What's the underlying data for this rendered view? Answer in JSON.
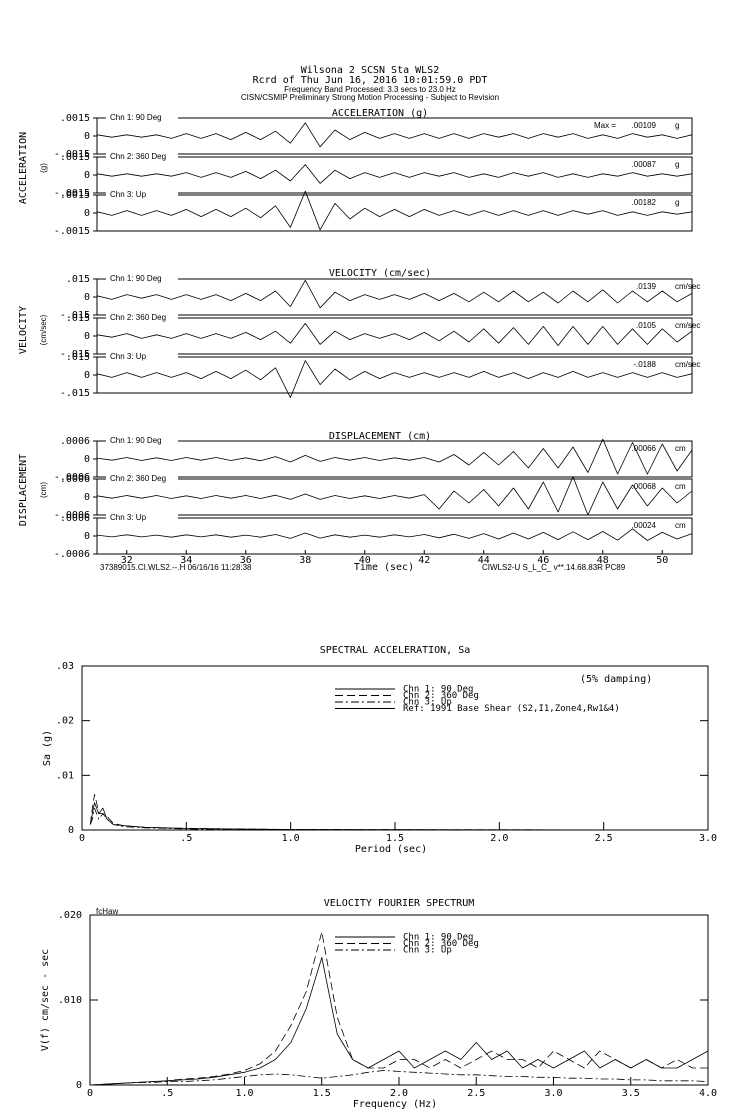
{
  "header": {
    "line1": "Wilsona 2    SCSN Sta WLS2",
    "line2": "Rcrd of Thu Jun 16, 2016 10:01:59.0 PDT",
    "line3": "Frequency Band Processed: 3.3 secs to 23.0 Hz",
    "line4": "CISN/CSMIP Preliminary Strong Motion Processing - Subject to Revision"
  },
  "footer": {
    "left": "37389015.CI.WLS2.--.H 06/16/16 11:28:38",
    "right": "CIWLS2-U  S_L_C_  v**.14.68.83R PC89"
  },
  "chart_data": [
    {
      "type": "waveform",
      "title": "ACCELERATION (g)",
      "ylabel": "ACCELERATION",
      "yunit": "(g)",
      "max_prefix": "Max =",
      "max_unit": "g",
      "xlim": [
        31,
        51
      ],
      "ylim": [
        -0.0015,
        0.0015
      ],
      "yticks": [
        {
          "value": 0.0015,
          "label": ".0015"
        },
        0,
        {
          "value": -0.0015,
          "label": "-.0015"
        }
      ],
      "x": [
        31,
        31.5,
        32,
        32.5,
        33,
        33.5,
        34,
        34.5,
        35,
        35.5,
        36,
        36.5,
        37,
        37.5,
        38,
        38.5,
        39,
        39.5,
        40,
        40.5,
        41,
        41.5,
        42,
        42.5,
        43,
        43.5,
        44,
        44.5,
        45,
        45.5,
        46,
        46.5,
        47,
        47.5,
        48,
        48.5,
        49,
        49.5,
        50,
        50.5,
        51
      ],
      "series": [
        {
          "name": "Chn 1: 90 Deg",
          "max_value": 0.00109,
          "max_label": ".00109",
          "values": [
            0.0001,
            -0.0001,
            0.0001,
            -0.0001,
            0.0001,
            -0.0002,
            0.0002,
            -0.0002,
            0.0002,
            -0.0003,
            0.0003,
            -0.0003,
            0.0004,
            -0.0006,
            0.00109,
            -0.0009,
            0.0005,
            -0.0003,
            0.0003,
            -0.0002,
            0.0002,
            -0.0002,
            0.0002,
            -0.0002,
            0.0002,
            -0.0002,
            0.0002,
            -0.0001,
            0.0002,
            -0.0002,
            0.0002,
            -0.0001,
            0.0002,
            -0.0002,
            0.0001,
            -0.0002,
            0.0002,
            -0.0001,
            0.0001,
            -0.0002,
            0.0001
          ]
        },
        {
          "name": "Chn 2: 360 Deg",
          "max_value": 0.00087,
          "max_label": ".00087",
          "values": [
            0.0001,
            -0.0001,
            0.0001,
            -0.0001,
            0.0001,
            -0.0001,
            0.0002,
            -0.0002,
            0.0002,
            -0.0002,
            0.0003,
            -0.0003,
            0.0004,
            -0.0005,
            0.00087,
            -0.0007,
            0.0004,
            -0.0003,
            0.0002,
            -0.0002,
            0.0002,
            -0.0002,
            0.0002,
            -0.0001,
            0.0002,
            -0.0002,
            0.0001,
            -0.0002,
            0.0002,
            -0.0001,
            0.0002,
            -0.0002,
            0.0001,
            -0.0002,
            0.0001,
            -0.0001,
            0.0002,
            -0.0001,
            0.0001,
            -0.0001,
            0.0001
          ]
        },
        {
          "name": "Chn 3: Up",
          "max_value": 0.00182,
          "max_label": ".00182",
          "values": [
            0.0001,
            -0.0002,
            0.0002,
            -0.0002,
            0.0002,
            -0.0002,
            0.0003,
            -0.0003,
            0.0003,
            -0.0003,
            0.0004,
            -0.0004,
            0.0006,
            -0.0012,
            0.00182,
            -0.0014,
            0.0008,
            -0.0005,
            0.0004,
            -0.0003,
            0.0003,
            -0.0003,
            0.0003,
            -0.0002,
            0.0002,
            -0.0002,
            0.0002,
            -0.0002,
            0.0002,
            -0.0002,
            0.0002,
            -0.0002,
            0.0002,
            -0.0001,
            0.0002,
            -0.0002,
            0.0001,
            -0.0002,
            0.0001,
            -0.0001,
            0.0001
          ]
        }
      ]
    },
    {
      "type": "waveform",
      "title": "VELOCITY (cm/sec)",
      "ylabel": "VELOCITY",
      "yunit": "(cm/sec)",
      "max_unit": "cm/sec",
      "xlim": [
        31,
        51
      ],
      "ylim": [
        -0.015,
        0.015
      ],
      "yticks": [
        {
          "value": 0.015,
          "label": ".015"
        },
        0,
        {
          "value": -0.015,
          "label": "-.015"
        }
      ],
      "x": [
        31,
        31.5,
        32,
        32.5,
        33,
        33.5,
        34,
        34.5,
        35,
        35.5,
        36,
        36.5,
        37,
        37.5,
        38,
        38.5,
        39,
        39.5,
        40,
        40.5,
        41,
        41.5,
        42,
        42.5,
        43,
        43.5,
        44,
        44.5,
        45,
        45.5,
        46,
        46.5,
        47,
        47.5,
        48,
        48.5,
        49,
        49.5,
        50,
        50.5,
        51
      ],
      "series": [
        {
          "name": "Chn 1: 90 Deg",
          "max_value": 0.0139,
          "max_label": ".0139",
          "values": [
            0.001,
            -0.002,
            0.002,
            -0.001,
            0.002,
            -0.002,
            0.002,
            -0.002,
            0.002,
            -0.003,
            0.003,
            -0.003,
            0.005,
            -0.008,
            0.0139,
            -0.009,
            0.004,
            -0.003,
            0.002,
            -0.002,
            0.002,
            -0.002,
            0.003,
            -0.003,
            0.003,
            -0.004,
            0.004,
            -0.004,
            0.005,
            -0.004,
            0.004,
            -0.005,
            0.005,
            -0.004,
            0.006,
            -0.005,
            0.005,
            -0.004,
            0.005,
            -0.004,
            0.003
          ]
        },
        {
          "name": "Chn 2: 360 Deg",
          "max_value": 0.0105,
          "max_label": ".0105",
          "values": [
            0.001,
            -0.001,
            0.002,
            -0.002,
            0.001,
            -0.002,
            0.002,
            -0.002,
            0.002,
            -0.002,
            0.003,
            -0.003,
            0.004,
            -0.006,
            0.0105,
            -0.007,
            0.004,
            -0.003,
            0.002,
            -0.002,
            0.002,
            -0.003,
            0.003,
            -0.004,
            0.004,
            -0.005,
            0.006,
            -0.006,
            0.007,
            -0.007,
            0.008,
            -0.008,
            0.008,
            -0.007,
            0.008,
            -0.007,
            0.006,
            -0.007,
            0.006,
            -0.005,
            0.004
          ]
        },
        {
          "name": "Chn 3: Up",
          "max_value": -0.0188,
          "max_label": "-.0188",
          "values": [
            0.001,
            -0.002,
            0.002,
            -0.002,
            0.002,
            -0.002,
            0.002,
            -0.003,
            0.003,
            -0.003,
            0.004,
            -0.004,
            0.006,
            -0.0188,
            0.012,
            -0.008,
            0.005,
            -0.004,
            0.003,
            -0.003,
            0.002,
            -0.002,
            0.002,
            -0.002,
            0.002,
            -0.002,
            0.003,
            -0.002,
            0.002,
            -0.003,
            0.002,
            -0.002,
            0.003,
            -0.002,
            0.002,
            -0.002,
            0.002,
            -0.002,
            0.002,
            -0.002,
            0.001
          ]
        }
      ]
    },
    {
      "type": "waveform",
      "title": "DISPLACEMENT (cm)",
      "ylabel": "DISPLACEMENT",
      "yunit": "(cm)",
      "max_unit": "cm",
      "xlabel": "Time (sec)",
      "xlim": [
        31,
        51
      ],
      "ylim": [
        -0.0006,
        0.0006
      ],
      "yticks": [
        {
          "value": 0.0006,
          "label": ".0006"
        },
        0,
        {
          "value": -0.0006,
          "label": "-.0006"
        }
      ],
      "xticks": [
        32,
        34,
        36,
        38,
        40,
        42,
        44,
        46,
        48,
        50
      ],
      "x": [
        31,
        31.5,
        32,
        32.5,
        33,
        33.5,
        34,
        34.5,
        35,
        35.5,
        36,
        36.5,
        37,
        37.5,
        38,
        38.5,
        39,
        39.5,
        40,
        40.5,
        41,
        41.5,
        42,
        42.5,
        43,
        43.5,
        44,
        44.5,
        45,
        45.5,
        46,
        46.5,
        47,
        47.5,
        48,
        48.5,
        49,
        49.5,
        50,
        50.5,
        51
      ],
      "series": [
        {
          "name": "Chn 1: 90 Deg",
          "max_value": 0.00066,
          "max_label": ".00066",
          "values": [
            3e-05,
            -4e-05,
            5e-05,
            -5e-05,
            4e-05,
            -5e-05,
            5e-05,
            -4e-05,
            5e-05,
            -5e-05,
            4e-05,
            -6e-05,
            8e-05,
            -0.0001,
            0.00012,
            -8e-05,
            5e-05,
            -4e-05,
            5e-05,
            -5e-05,
            4e-05,
            -4e-05,
            5e-05,
            -0.0001,
            0.00015,
            -0.0002,
            0.00022,
            -0.0002,
            0.00025,
            -0.0003,
            0.00035,
            -0.0003,
            0.0004,
            -0.00045,
            0.00066,
            -0.0005,
            0.00055,
            -0.0005,
            0.0005,
            -0.0004,
            0.0003
          ]
        },
        {
          "name": "Chn 2: 360 Deg",
          "max_value": 0.00068,
          "max_label": ".00068",
          "values": [
            4e-05,
            -4e-05,
            5e-05,
            -4e-05,
            5e-05,
            -5e-05,
            4e-05,
            -5e-05,
            5e-05,
            -4e-05,
            5e-05,
            -5e-05,
            6e-05,
            -8e-05,
            0.0001,
            -8e-05,
            5e-05,
            -5e-05,
            4e-05,
            -5e-05,
            5e-05,
            -4e-05,
            8e-05,
            -0.0004,
            0.0002,
            -0.0002,
            0.00025,
            -0.0003,
            0.0003,
            -0.0004,
            0.0005,
            -0.0005,
            0.00068,
            -0.0006,
            0.0005,
            -0.0004,
            0.0004,
            -0.0003,
            0.0003,
            -0.0002,
            0.0002
          ]
        },
        {
          "name": "Chn 3: Up",
          "max_value": 0.00024,
          "max_label": ".00024",
          "values": [
            3e-05,
            -3e-05,
            4e-05,
            -3e-05,
            3e-05,
            -4e-05,
            4e-05,
            -3e-05,
            4e-05,
            -4e-05,
            3e-05,
            -4e-05,
            5e-05,
            -8e-05,
            0.0001,
            -7e-05,
            4e-05,
            -4e-05,
            3e-05,
            -4e-05,
            4e-05,
            -3e-05,
            5e-05,
            -6e-05,
            6e-05,
            -8e-05,
            8e-05,
            -0.0001,
            0.0001,
            -0.0001,
            0.00012,
            -0.00012,
            0.00014,
            -0.00012,
            0.00015,
            -0.00014,
            0.00024,
            -0.00015,
            0.00012,
            -0.0001,
            8e-05
          ]
        }
      ]
    },
    {
      "type": "line",
      "title": "SPECTRAL ACCELERATION, Sa",
      "xlabel": "Period (sec)",
      "ylabel": "Sa (g)",
      "annotation": "(5% damping)",
      "xlim": [
        0,
        3
      ],
      "ylim": [
        0,
        0.03
      ],
      "xticks": [
        0,
        {
          "value": 0.5,
          "label": ".5"
        },
        {
          "value": 1,
          "label": "1.0"
        },
        {
          "value": 1.5,
          "label": "1.5"
        },
        {
          "value": 2,
          "label": "2.0"
        },
        {
          "value": 2.5,
          "label": "2.5"
        },
        {
          "value": 3,
          "label": "3.0"
        }
      ],
      "yticks": [
        0,
        {
          "value": 0.01,
          "label": ".01"
        },
        {
          "value": 0.02,
          "label": ".02"
        },
        {
          "value": 0.03,
          "label": ".03"
        }
      ],
      "x": [
        0.04,
        0.05,
        0.06,
        0.07,
        0.08,
        0.1,
        0.12,
        0.15,
        0.2,
        0.3,
        0.5,
        0.7,
        1.0,
        1.5,
        2.0,
        2.5,
        3.0
      ],
      "series": [
        {
          "name": "Chn 1: 90 Deg",
          "color": "#000000",
          "line_style": "solid",
          "values": [
            0.001,
            0.003,
            0.005,
            0.004,
            0.003,
            0.004,
            0.002,
            0.001,
            0.0008,
            0.0005,
            0.0003,
            0.0002,
            0.0001,
            5e-05,
            3e-05,
            2e-05,
            2e-05
          ]
        },
        {
          "name": "Chn 2: 360 Deg",
          "color": "#000000",
          "line_style": "dashed",
          "values": [
            0.001,
            0.004,
            0.0065,
            0.005,
            0.003,
            0.003,
            0.0025,
            0.0012,
            0.0008,
            0.0005,
            0.0003,
            0.0002,
            0.0001,
            5e-05,
            3e-05,
            2e-05,
            2e-05
          ]
        },
        {
          "name": "Chn 3: Up",
          "color": "#000000",
          "line_style": "dashdot",
          "values": [
            0.001,
            0.002,
            0.004,
            0.003,
            0.002,
            0.003,
            0.002,
            0.001,
            0.0006,
            0.0004,
            0.0002,
            0.0001,
            7e-05,
            3e-05,
            2e-05,
            1e-05,
            1e-05
          ]
        },
        {
          "name": "Ref: 1991 Base Shear (S2,I1,Zone4,Rw1&4)",
          "color": "#000000",
          "line_style": "solid"
        }
      ]
    },
    {
      "type": "line",
      "title": "VELOCITY FOURIER SPECTRUM",
      "xlabel": "Frequency (Hz)",
      "ylabel": "V(f)   cm/sec - sec",
      "annotation": "fcHaw",
      "xlim": [
        0,
        4
      ],
      "ylim": [
        0,
        0.02
      ],
      "xticks": [
        0,
        {
          "value": 0.5,
          "label": ".5"
        },
        {
          "value": 1,
          "label": "1.0"
        },
        {
          "value": 1.5,
          "label": "1.5"
        },
        {
          "value": 2,
          "label": "2.0"
        },
        {
          "value": 2.5,
          "label": "2.5"
        },
        {
          "value": 3,
          "label": "3.0"
        },
        {
          "value": 3.5,
          "label": "3.5"
        },
        {
          "value": 4,
          "label": "4.0"
        }
      ],
      "yticks": [
        0,
        {
          "value": 0.01,
          "label": ".010"
        },
        {
          "value": 0.02,
          "label": ".020"
        }
      ],
      "x": [
        0,
        0.1,
        0.2,
        0.3,
        0.4,
        0.5,
        0.6,
        0.7,
        0.8,
        0.9,
        1.0,
        1.1,
        1.2,
        1.3,
        1.4,
        1.5,
        1.6,
        1.7,
        1.8,
        1.9,
        2.0,
        2.1,
        2.2,
        2.3,
        2.4,
        2.5,
        2.6,
        2.7,
        2.8,
        2.9,
        3.0,
        3.1,
        3.2,
        3.3,
        3.4,
        3.5,
        3.6,
        3.7,
        3.8,
        3.9,
        4.0
      ],
      "series": [
        {
          "name": "Chn 1: 90 Deg",
          "color": "#000000",
          "line_style": "solid",
          "values": [
            0,
            0.0001,
            0.0002,
            0.0003,
            0.0004,
            0.0005,
            0.0006,
            0.0007,
            0.0009,
            0.0012,
            0.0015,
            0.002,
            0.003,
            0.005,
            0.009,
            0.015,
            0.006,
            0.003,
            0.002,
            0.003,
            0.004,
            0.002,
            0.003,
            0.004,
            0.003,
            0.005,
            0.003,
            0.004,
            0.002,
            0.003,
            0.002,
            0.003,
            0.004,
            0.002,
            0.003,
            0.002,
            0.003,
            0.002,
            0.002,
            0.003,
            0.004
          ]
        },
        {
          "name": "Chn 2: 360 Deg",
          "color": "#000000",
          "line_style": "dashed",
          "values": [
            0,
            0.0001,
            0.0002,
            0.0003,
            0.0004,
            0.0005,
            0.0007,
            0.0008,
            0.001,
            0.0013,
            0.0017,
            0.0025,
            0.004,
            0.007,
            0.011,
            0.018,
            0.008,
            0.003,
            0.002,
            0.002,
            0.003,
            0.003,
            0.002,
            0.003,
            0.002,
            0.003,
            0.004,
            0.003,
            0.003,
            0.002,
            0.004,
            0.003,
            0.002,
            0.004,
            0.003,
            0.002,
            0.003,
            0.002,
            0.003,
            0.002,
            0.002
          ]
        },
        {
          "name": "Chn 3: Up",
          "color": "#000000",
          "line_style": "dashdot",
          "values": [
            0,
            0.0001,
            0.0002,
            0.0003,
            0.0003,
            0.0004,
            0.0004,
            0.0005,
            0.0006,
            0.0008,
            0.001,
            0.0012,
            0.0013,
            0.0012,
            0.001,
            0.0008,
            0.001,
            0.0012,
            0.0015,
            0.0017,
            0.0016,
            0.0015,
            0.0014,
            0.0013,
            0.0012,
            0.0012,
            0.0011,
            0.001,
            0.001,
            0.0009,
            0.0009,
            0.0008,
            0.0008,
            0.0007,
            0.0007,
            0.0006,
            0.0006,
            0.0005,
            0.0005,
            0.0005,
            0.0004
          ]
        }
      ]
    }
  ]
}
